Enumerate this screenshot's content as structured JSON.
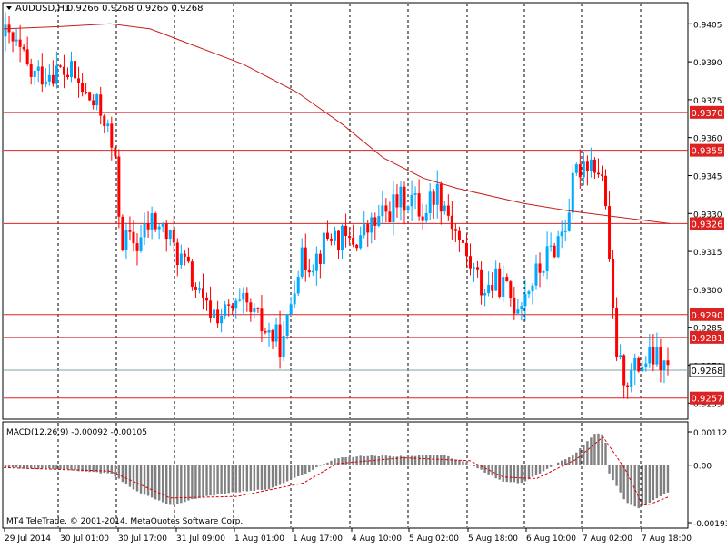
{
  "header": {
    "symbol_label": "AUDUSD,H1",
    "ohlc_text": "0.9266 0.9268 0.9266 0.9268"
  },
  "macd_panel": {
    "label": "MACD(12,26,9) -0.00092 -0.00105"
  },
  "copyright": "MT4 TeleTrade, © 2001-2014, MetaQuotes Software Corp.",
  "colors": {
    "background": "#ffffff",
    "bull_candle": "#00aaff",
    "bear_candle": "#ff0000",
    "moving_average": "#c81e1e",
    "level_line": "#dd2222",
    "current_price_line": "#7aa6a6",
    "histogram": "#808080",
    "signal_line": "#dd0000",
    "grid_separator": "#000000"
  },
  "chart_data": [
    {
      "type": "candlestick",
      "title": "AUDUSD,H1",
      "symbol": "AUDUSD",
      "timeframe": "H1",
      "ohlc_last": {
        "open": 0.9266,
        "high": 0.9268,
        "low": 0.9266,
        "close": 0.9268
      },
      "ylim": [
        0.9249,
        0.9413
      ],
      "y_ticks": [
        "0.9405",
        "0.9390",
        "0.9375",
        "0.9360",
        "0.9345",
        "0.9330",
        "0.9315",
        "0.9300",
        "0.9285",
        "0.9270",
        "0.9255"
      ],
      "x_ticks": [
        "29 Jul 2014",
        "30 Jul 01:00",
        "30 Jul 17:00",
        "31 Jul 09:00",
        "1 Aug 01:00",
        "1 Aug 17:00",
        "4 Aug 10:00",
        "5 Aug 02:00",
        "5 Aug 18:00",
        "6 Aug 10:00",
        "7 Aug 02:00",
        "7 Aug 18:00"
      ],
      "grid": "vertical dashed separators",
      "horizontal_levels": [
        {
          "value": 0.937,
          "label": "0.9370"
        },
        {
          "value": 0.9355,
          "label": "0.9355"
        },
        {
          "value": 0.9326,
          "label": "0.9326"
        },
        {
          "value": 0.929,
          "label": "0.9290"
        },
        {
          "value": 0.9281,
          "label": "0.9281"
        },
        {
          "value": 0.9257,
          "label": "0.9257"
        }
      ],
      "current_price": {
        "value": 0.9268,
        "label": "0.9268"
      },
      "moving_average": {
        "points": [
          [
            0.9403,
            0
          ],
          [
            0.9404,
            0.09
          ],
          [
            0.9405,
            0.16
          ],
          [
            0.9403,
            0.22
          ],
          [
            0.9397,
            0.28
          ],
          [
            0.9389,
            0.36
          ],
          [
            0.9378,
            0.44
          ],
          [
            0.9365,
            0.51
          ],
          [
            0.9352,
            0.57
          ],
          [
            0.9344,
            0.63
          ],
          [
            0.934,
            0.68
          ],
          [
            0.9334,
            0.78
          ],
          [
            0.9331,
            0.85
          ],
          [
            0.9326,
            1.0
          ]
        ]
      },
      "anchors": [
        {
          "x": 0.0,
          "price": 0.94
        },
        {
          "x": 0.018,
          "price": 0.9395
        },
        {
          "x": 0.04,
          "price": 0.9384
        },
        {
          "x": 0.07,
          "price": 0.9387
        },
        {
          "x": 0.1,
          "price": 0.9385
        },
        {
          "x": 0.12,
          "price": 0.9377
        },
        {
          "x": 0.15,
          "price": 0.9368
        },
        {
          "x": 0.165,
          "price": 0.935
        },
        {
          "x": 0.175,
          "price": 0.932
        },
        {
          "x": 0.2,
          "price": 0.9318
        },
        {
          "x": 0.22,
          "price": 0.9327
        },
        {
          "x": 0.24,
          "price": 0.9323
        },
        {
          "x": 0.28,
          "price": 0.9305
        },
        {
          "x": 0.3,
          "price": 0.9292
        },
        {
          "x": 0.33,
          "price": 0.929
        },
        {
          "x": 0.36,
          "price": 0.9293
        },
        {
          "x": 0.395,
          "price": 0.9283
        },
        {
          "x": 0.42,
          "price": 0.9278
        },
        {
          "x": 0.44,
          "price": 0.931
        },
        {
          "x": 0.47,
          "price": 0.9313
        },
        {
          "x": 0.49,
          "price": 0.9322
        },
        {
          "x": 0.52,
          "price": 0.9318
        },
        {
          "x": 0.55,
          "price": 0.9324
        },
        {
          "x": 0.585,
          "price": 0.9333
        },
        {
          "x": 0.61,
          "price": 0.9337
        },
        {
          "x": 0.63,
          "price": 0.933
        },
        {
          "x": 0.65,
          "price": 0.934
        },
        {
          "x": 0.665,
          "price": 0.9333
        },
        {
          "x": 0.69,
          "price": 0.9316
        },
        {
          "x": 0.72,
          "price": 0.93
        },
        {
          "x": 0.745,
          "price": 0.9303
        },
        {
          "x": 0.77,
          "price": 0.9294
        },
        {
          "x": 0.8,
          "price": 0.9305
        },
        {
          "x": 0.83,
          "price": 0.9318
        },
        {
          "x": 0.845,
          "price": 0.9326
        },
        {
          "x": 0.86,
          "price": 0.9345
        },
        {
          "x": 0.875,
          "price": 0.9352
        },
        {
          "x": 0.89,
          "price": 0.935
        },
        {
          "x": 0.905,
          "price": 0.934
        },
        {
          "x": 0.913,
          "price": 0.93
        },
        {
          "x": 0.925,
          "price": 0.927
        },
        {
          "x": 0.94,
          "price": 0.9265
        },
        {
          "x": 0.96,
          "price": 0.9271
        },
        {
          "x": 0.98,
          "price": 0.9273
        },
        {
          "x": 1.0,
          "price": 0.9268
        }
      ],
      "candle_count": 182
    },
    {
      "type": "macd",
      "label": "MACD(12,26,9) -0.00092 -0.00105",
      "params": [
        12,
        26,
        9
      ],
      "values": {
        "macd": -0.00092,
        "signal": -0.00105
      },
      "ylim": [
        -0.00193,
        0.00112
      ],
      "y_ticks": [
        "0.00112",
        "0.00",
        "-0.00193"
      ],
      "anchors": [
        {
          "x": 0.0,
          "value": -8e-05
        },
        {
          "x": 0.1,
          "value": -0.00016
        },
        {
          "x": 0.16,
          "value": -0.0003
        },
        {
          "x": 0.2,
          "value": -0.0009
        },
        {
          "x": 0.25,
          "value": -0.00135
        },
        {
          "x": 0.3,
          "value": -0.00105
        },
        {
          "x": 0.35,
          "value": -0.0009
        },
        {
          "x": 0.4,
          "value": -0.0008
        },
        {
          "x": 0.45,
          "value": -0.0003
        },
        {
          "x": 0.5,
          "value": 0.00025
        },
        {
          "x": 0.55,
          "value": 0.00032
        },
        {
          "x": 0.6,
          "value": 0.0003
        },
        {
          "x": 0.66,
          "value": 0.00035
        },
        {
          "x": 0.7,
          "value": 5e-05
        },
        {
          "x": 0.75,
          "value": -0.00055
        },
        {
          "x": 0.78,
          "value": -0.0006
        },
        {
          "x": 0.82,
          "value": -0.0001
        },
        {
          "x": 0.86,
          "value": 0.0004
        },
        {
          "x": 0.89,
          "value": 0.00108
        },
        {
          "x": 0.905,
          "value": 0.001
        },
        {
          "x": 0.91,
          "value": -0.0002
        },
        {
          "x": 0.935,
          "value": -0.0012
        },
        {
          "x": 0.955,
          "value": -0.00145
        },
        {
          "x": 1.0,
          "value": -0.00092
        }
      ],
      "signal_anchors": [
        {
          "x": 0.0,
          "value": -8e-05
        },
        {
          "x": 0.16,
          "value": -0.0002
        },
        {
          "x": 0.25,
          "value": -0.0011
        },
        {
          "x": 0.35,
          "value": -0.00105
        },
        {
          "x": 0.45,
          "value": -0.0006
        },
        {
          "x": 0.5,
          "value": 5e-05
        },
        {
          "x": 0.6,
          "value": 0.00025
        },
        {
          "x": 0.7,
          "value": 0.00015
        },
        {
          "x": 0.75,
          "value": -0.0004
        },
        {
          "x": 0.8,
          "value": -0.00045
        },
        {
          "x": 0.86,
          "value": 0.0002
        },
        {
          "x": 0.9,
          "value": 0.00095
        },
        {
          "x": 0.935,
          "value": -0.0002
        },
        {
          "x": 0.96,
          "value": -0.0014
        },
        {
          "x": 1.0,
          "value": -0.00105
        }
      ],
      "histogram_count": 182
    }
  ]
}
